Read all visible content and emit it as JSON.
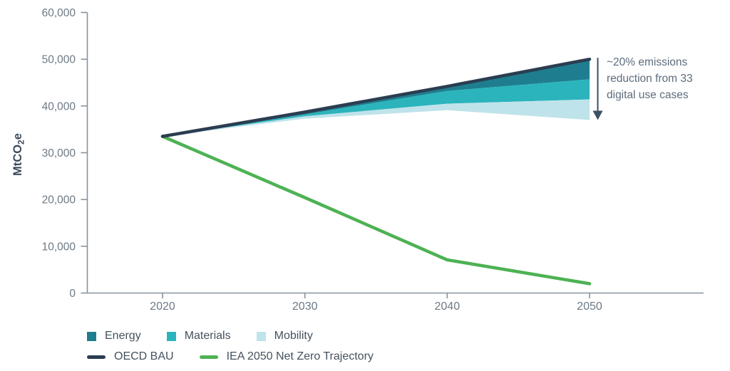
{
  "chart_data": {
    "type": "area",
    "title": "",
    "ylabel": {
      "prefix": "MtCO",
      "sub": "2",
      "suffix": "e"
    },
    "x": [
      2020,
      2030,
      2040,
      2050
    ],
    "x_ticks": [
      "2020",
      "2030",
      "2040",
      "2050"
    ],
    "y_tick_values": [
      0,
      10000,
      20000,
      30000,
      40000,
      50000,
      60000
    ],
    "y_ticks": [
      "0",
      "10,000",
      "20,000",
      "30,000",
      "40,000",
      "50,000",
      "60,000"
    ],
    "ylim": [
      0,
      60000
    ],
    "grid": false,
    "legend_position": "bottom",
    "series": [
      {
        "name": "OECD BAU",
        "type": "line",
        "color": "#2b3d51",
        "values": [
          33500,
          38700,
          44200,
          50000
        ]
      },
      {
        "name": "IEA 2050 Net Zero Trajectory",
        "type": "line",
        "color": "#4db253",
        "values": [
          33500,
          20400,
          7100,
          2000
        ]
      }
    ],
    "bands": [
      {
        "name": "Energy",
        "color": "#1e7e8f",
        "top": [
          33500,
          38700,
          44200,
          50000
        ],
        "bottom": [
          33500,
          38200,
          43200,
          45700
        ]
      },
      {
        "name": "Materials",
        "color": "#2bb4bc",
        "top": [
          33500,
          38200,
          43200,
          45700
        ],
        "bottom": [
          33500,
          37800,
          40500,
          41400
        ]
      },
      {
        "name": "Mobility",
        "color": "#bfe3ea",
        "top": [
          33500,
          37800,
          40500,
          41400
        ],
        "bottom": [
          33500,
          37300,
          39100,
          37000
        ]
      }
    ]
  },
  "annotation": {
    "text": "~20% emissions reduction from 33 digital use cases",
    "arrow": {
      "from_value": 50000,
      "to_value": 37000,
      "color": "#3d4f63"
    }
  },
  "colors": {
    "axis": "#8793a0",
    "tick_label": "#6d7985",
    "ylabel_text": "#3d4a5c",
    "legend_text": "#45525f",
    "annotation_text": "#5d6c7c"
  }
}
